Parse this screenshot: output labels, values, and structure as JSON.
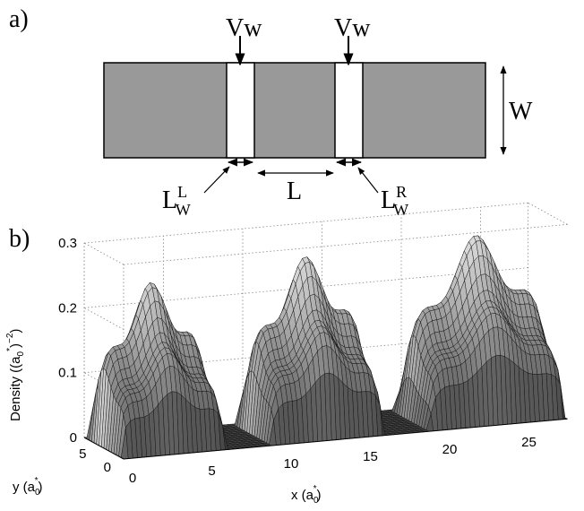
{
  "panel_a": {
    "label": "a)",
    "gate_left_label": "Vw",
    "gate_right_label": "Vw",
    "width_label": "W",
    "barrier_left_label": "L",
    "barrier_left_sup": "L",
    "barrier_left_sub": "W",
    "spacing_label": "L",
    "barrier_right_label": "L",
    "barrier_right_sup": "R",
    "barrier_right_sub": "W",
    "colors": {
      "wire": "#999999",
      "outline": "#000000",
      "barrier": "#ffffff"
    }
  },
  "panel_b": {
    "label": "b)",
    "chart_data": {
      "type": "surface",
      "zlabel": "Density ((a0*)^-2)",
      "zlabel_parts": {
        "main": "Density ((a",
        "sub": "0",
        "sup_star": "*",
        "close": ")",
        "sup_exp": "−2",
        "end": ")"
      },
      "xlabel_parts": {
        "main": "x (a",
        "sub": "0",
        "sup_star": "*",
        "end": ")"
      },
      "ylabel_parts": {
        "main": "y (a",
        "sub": "0",
        "sup_star": "*",
        "end": ")"
      },
      "x_ticks": [
        "0",
        "5",
        "10",
        "15",
        "20",
        "25"
      ],
      "y_ticks": [
        "0",
        "5"
      ],
      "z_ticks": [
        "0",
        "0.1",
        "0.2",
        "0.3"
      ],
      "xlim": [
        0,
        28
      ],
      "ylim": [
        0,
        8
      ],
      "zlim": [
        0,
        0.3
      ],
      "grid": true,
      "peaks": [
        {
          "x_start": 0,
          "x_end": 6.5,
          "max_density": 0.27
        },
        {
          "x_start": 9.5,
          "x_end": 16.5,
          "max_density": 0.29
        },
        {
          "x_start": 19.5,
          "x_end": 28,
          "max_density": 0.3
        }
      ]
    }
  }
}
